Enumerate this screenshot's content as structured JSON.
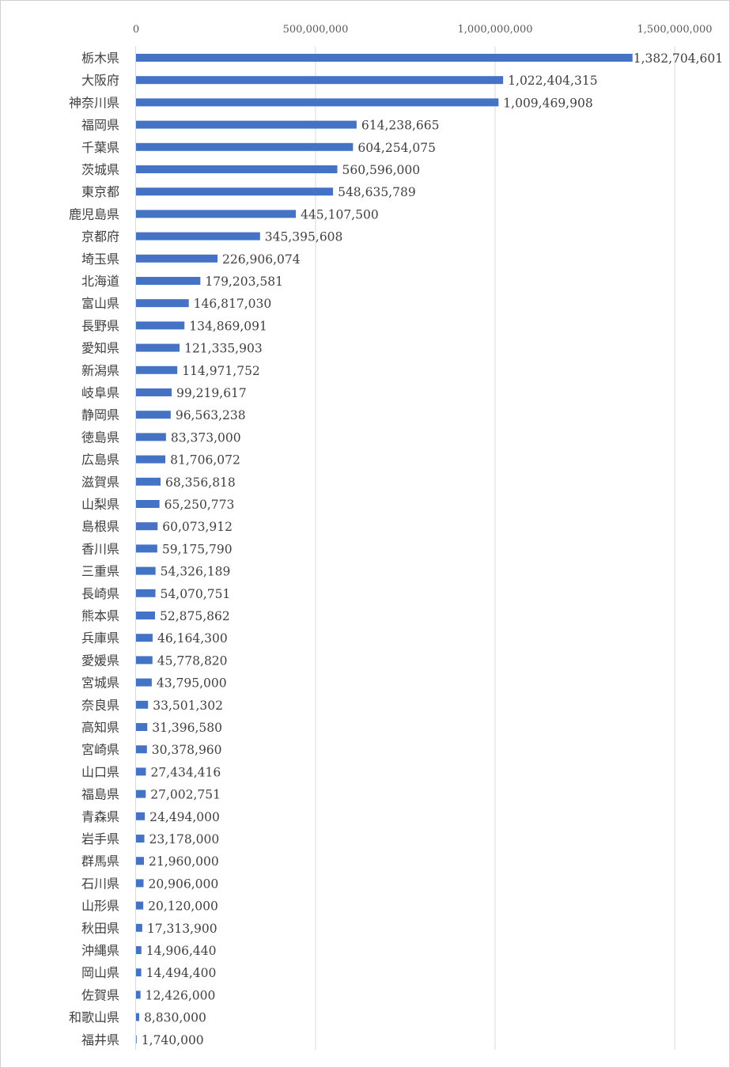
{
  "chart_data": {
    "type": "bar",
    "orientation": "horizontal",
    "title": "",
    "xlabel": "",
    "ylabel": "",
    "xlim": [
      0,
      1500000000
    ],
    "ticks": [
      0,
      500000000,
      1000000000,
      1500000000
    ],
    "tick_labels": [
      "0",
      "500,000,000",
      "1,000,000,000",
      "1,500,000,000"
    ],
    "grid": "vertical",
    "bar_color": "#4472C4",
    "categories": [
      "栃木県",
      "大阪府",
      "神奈川県",
      "福岡県",
      "千葉県",
      "茨城県",
      "東京都",
      "鹿児島県",
      "京都府",
      "埼玉県",
      "北海道",
      "富山県",
      "長野県",
      "愛知県",
      "新潟県",
      "岐阜県",
      "静岡県",
      "徳島県",
      "広島県",
      "滋賀県",
      "山梨県",
      "島根県",
      "香川県",
      "三重県",
      "長崎県",
      "熊本県",
      "兵庫県",
      "愛媛県",
      "宮城県",
      "奈良県",
      "高知県",
      "宮崎県",
      "山口県",
      "福島県",
      "青森県",
      "岩手県",
      "群馬県",
      "石川県",
      "山形県",
      "秋田県",
      "沖縄県",
      "岡山県",
      "佐賀県",
      "和歌山県",
      "福井県"
    ],
    "values": [
      1382704601,
      1022404315,
      1009469908,
      614238665,
      604254075,
      560596000,
      548635789,
      445107500,
      345395608,
      226906074,
      179203581,
      146817030,
      134869091,
      121335903,
      114971752,
      99219617,
      96563238,
      83373000,
      81706072,
      68356818,
      65250773,
      60073912,
      59175790,
      54326189,
      54070751,
      52875862,
      46164300,
      45778820,
      43795000,
      33501302,
      31396580,
      30378960,
      27434416,
      27002751,
      24494000,
      23178000,
      21960000,
      20906000,
      20120000,
      17313900,
      14906440,
      14494400,
      12426000,
      8830000,
      1740000
    ],
    "value_labels": [
      "1,382,704,601",
      "1,022,404,315",
      "1,009,469,908",
      "614,238,665",
      "604,254,075",
      "560,596,000",
      "548,635,789",
      "445,107,500",
      "345,395,608",
      "226,906,074",
      "179,203,581",
      "146,817,030",
      "134,869,091",
      "121,335,903",
      "114,971,752",
      "99,219,617",
      "96,563,238",
      "83,373,000",
      "81,706,072",
      "68,356,818",
      "65,250,773",
      "60,073,912",
      "59,175,790",
      "54,326,189",
      "54,070,751",
      "52,875,862",
      "46,164,300",
      "45,778,820",
      "43,795,000",
      "33,501,302",
      "31,396,580",
      "30,378,960",
      "27,434,416",
      "27,002,751",
      "24,494,000",
      "23,178,000",
      "21,960,000",
      "20,906,000",
      "20,120,000",
      "17,313,900",
      "14,906,440",
      "14,494,400",
      "12,426,000",
      "8,830,000",
      "1,740,000"
    ]
  }
}
